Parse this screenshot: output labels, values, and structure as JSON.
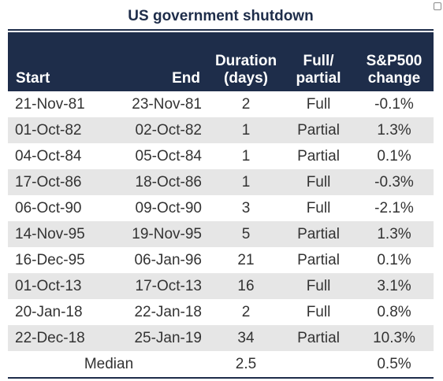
{
  "title": "US government shutdown",
  "headers": {
    "start": "Start",
    "end": "End",
    "duration_line1": "Duration",
    "duration_line2": "(days)",
    "type_line1": "Full/",
    "type_line2": "partial",
    "change_line1": "S&P500",
    "change_line2": "change"
  },
  "rows": [
    {
      "start": "21-Nov-81",
      "end": "23-Nov-81",
      "duration": "2",
      "type": "Full",
      "change": "-0.1%"
    },
    {
      "start": "01-Oct-82",
      "end": "02-Oct-82",
      "duration": "1",
      "type": "Partial",
      "change": "1.3%"
    },
    {
      "start": "04-Oct-84",
      "end": "05-Oct-84",
      "duration": "1",
      "type": "Partial",
      "change": "0.1%"
    },
    {
      "start": "17-Oct-86",
      "end": "18-Oct-86",
      "duration": "1",
      "type": "Full",
      "change": "-0.3%"
    },
    {
      "start": "06-Oct-90",
      "end": "09-Oct-90",
      "duration": "3",
      "type": "Full",
      "change": "-2.1%"
    },
    {
      "start": "14-Nov-95",
      "end": "19-Nov-95",
      "duration": "5",
      "type": "Partial",
      "change": "1.3%"
    },
    {
      "start": "16-Dec-95",
      "end": "06-Jan-96",
      "duration": "21",
      "type": "Partial",
      "change": "0.1%"
    },
    {
      "start": "01-Oct-13",
      "end": "17-Oct-13",
      "duration": "16",
      "type": "Full",
      "change": "3.1%"
    },
    {
      "start": "20-Jan-18",
      "end": "22-Jan-18",
      "duration": "2",
      "type": "Full",
      "change": "0.8%"
    },
    {
      "start": "22-Dec-18",
      "end": "25-Jan-19",
      "duration": "34",
      "type": "Partial",
      "change": "10.3%"
    }
  ],
  "median": {
    "label": "Median",
    "duration": "2.5",
    "change": "0.5%"
  },
  "colors": {
    "header_bg": "#1e2d4a",
    "header_text": "#ffffff",
    "stripe": "#e6e6e6",
    "body_text": "#333333"
  }
}
